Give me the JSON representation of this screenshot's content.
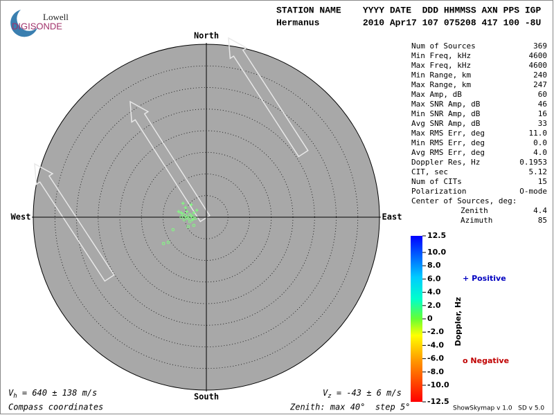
{
  "logo": {
    "top": "Lowell",
    "bottom": "DIGISONDE"
  },
  "header": {
    "rows": [
      "STATION NAME    YYYY DATE  DDD HHMMSS AXN PPS IGP",
      "Hermanus        2010 Apr17 107 075208 417 100 -8U"
    ]
  },
  "stats": {
    "rows": [
      [
        "Num of Sources",
        "369"
      ],
      [
        "Min Freq, kHz",
        "4600"
      ],
      [
        "Max Freq, kHz",
        "4600"
      ],
      [
        "Min Range, km",
        "240"
      ],
      [
        "Max Range, km",
        "247"
      ],
      [
        "Max Amp, dB",
        "60"
      ],
      [
        "Max SNR Amp, dB",
        "46"
      ],
      [
        "Min SNR Amp, dB",
        "16"
      ],
      [
        "Avg SNR Amp, dB",
        "33"
      ],
      [
        "Max RMS Err, deg",
        "11.0"
      ],
      [
        "Min RMS Err, deg",
        "0.0"
      ],
      [
        "Avg RMS Err, deg",
        "4.0"
      ],
      [
        "Doppler Res, Hz",
        "0.1953"
      ],
      [
        "CIT, sec",
        "5.12"
      ],
      [
        "Num of CITs",
        "15"
      ],
      [
        "Polarization",
        "O-mode"
      ]
    ],
    "center_title": "Center of Sources, deg:",
    "center_rows": [
      [
        "Zenith",
        "4.4"
      ],
      [
        "Azimuth",
        "85"
      ]
    ]
  },
  "chart_data": {
    "type": "skymap",
    "directions": {
      "north": "North",
      "south": "South",
      "east": "East",
      "west": "West"
    },
    "xlim": [
      -40,
      40
    ],
    "ylim": [
      -40,
      40
    ],
    "point_color": "#80ff80",
    "series": [
      {
        "name": "Positive",
        "marker": "+",
        "color": "#0000c0",
        "x": [
          -6.4,
          -5.8,
          -4.5,
          -3.5,
          -2.2,
          -5.4,
          -4.8,
          -2.9,
          -3.2
        ],
        "values": [
          1.3,
          1.0,
          1.3,
          2.9,
          1.6,
          3.2,
          2.2,
          1.0,
          -0.6
        ]
      },
      {
        "name": "Negative",
        "marker": "o",
        "color": "#c00000",
        "x": [
          -5.3,
          -4.8,
          -4.5,
          -4.2,
          -3.8,
          -3.5,
          -3.2,
          -5.8,
          -5.1,
          -3.8,
          -2.6,
          -2.9,
          -4.2,
          -7.7,
          -9.9,
          -8.8
        ],
        "values": [
          0.6,
          0.3,
          0.0,
          -0.3,
          0.6,
          0.3,
          0.0,
          0.0,
          -0.6,
          -1.0,
          -0.3,
          -1.9,
          -2.2,
          -2.9,
          -6.1,
          -5.8
        ]
      }
    ],
    "colorbar": {
      "label": "Doppler, Hz",
      "lim": [
        -12.5,
        12.5
      ],
      "ticks": [
        12.5,
        {
          "value": 10,
          "label": "10.0"
        },
        {
          "value": 8,
          "label": "8.0"
        },
        {
          "value": 6,
          "label": "6.0"
        },
        {
          "value": 4,
          "label": "4.0"
        },
        {
          "value": 2,
          "label": "2.0"
        },
        0,
        {
          "value": -2,
          "label": "-2.0"
        },
        {
          "value": -4,
          "label": "-4.0"
        },
        {
          "value": -6,
          "label": "-6.0"
        },
        {
          "value": -8,
          "label": "-8.0"
        },
        {
          "value": -10,
          "label": "-10.0"
        },
        -12.5
      ]
    },
    "velocity_h": {
      "symbol": "V",
      "sub": "h",
      "text": " = 640 ± 138 m/s"
    },
    "velocity_z": {
      "symbol": "V",
      "sub": "z",
      "text": " = -43 ± 6 m/s"
    },
    "coordinates": "Compass coordinates",
    "zenith_note": "Zenith: max 40°  step 5°",
    "version": "ShowSkymap v 1.0   SD v 5.0"
  }
}
